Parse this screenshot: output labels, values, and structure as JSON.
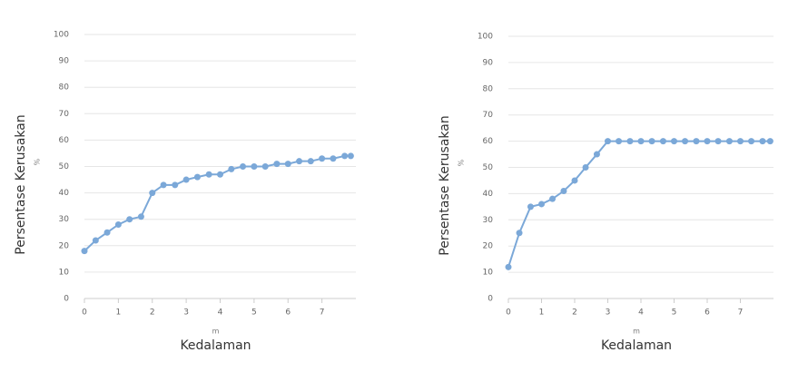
{
  "chart_data": [
    {
      "type": "line",
      "ylabel": "Persentase Kerusakan",
      "ylabel_unit": "%",
      "xlabel": "Kedalaman",
      "xlabel_unit": "m",
      "x": [
        0,
        0.33,
        0.67,
        1,
        1.33,
        1.67,
        2,
        2.33,
        2.67,
        3,
        3.33,
        3.67,
        4,
        4.33,
        4.67,
        5,
        5.33,
        5.67,
        6,
        6.33,
        6.67,
        7,
        7.33,
        7.67,
        7.85
      ],
      "series": [
        {
          "color": "#7ba8d8",
          "values": [
            18,
            22,
            25,
            28,
            30,
            31,
            40,
            43,
            43,
            45,
            46,
            47,
            47,
            49,
            50,
            50,
            50,
            51,
            51,
            52,
            52,
            53,
            53,
            54,
            54
          ]
        }
      ],
      "xlim": [
        0,
        8
      ],
      "xticks": [
        0,
        1,
        2,
        3,
        4,
        5,
        6,
        7
      ],
      "ylim": [
        0,
        100
      ],
      "yticks": [
        0,
        10,
        20,
        30,
        40,
        50,
        60,
        70,
        80,
        90,
        100
      ],
      "grid": true
    },
    {
      "type": "line",
      "ylabel": "Persentase Kerusakan",
      "ylabel_unit": "%",
      "xlabel": "Kedalaman",
      "xlabel_unit": "m",
      "x": [
        0,
        0.33,
        0.67,
        1,
        1.33,
        1.67,
        2,
        2.33,
        2.67,
        3,
        3.33,
        3.67,
        4,
        4.33,
        4.67,
        5,
        5.33,
        5.67,
        6,
        6.33,
        6.67,
        7,
        7.33,
        7.67,
        7.9
      ],
      "series": [
        {
          "color": "#7ba8d8",
          "values": [
            12,
            25,
            35,
            36,
            38,
            41,
            45,
            50,
            55,
            60,
            60,
            60,
            60,
            60,
            60,
            60,
            60,
            60,
            60,
            60,
            60,
            60,
            60,
            60,
            60
          ]
        }
      ],
      "xlim": [
        0,
        8
      ],
      "xticks": [
        0,
        1,
        2,
        3,
        4,
        5,
        6,
        7
      ],
      "ylim": [
        0,
        100
      ],
      "yticks": [
        0,
        10,
        20,
        30,
        40,
        50,
        60,
        70,
        80,
        90,
        100
      ],
      "grid": true
    }
  ]
}
